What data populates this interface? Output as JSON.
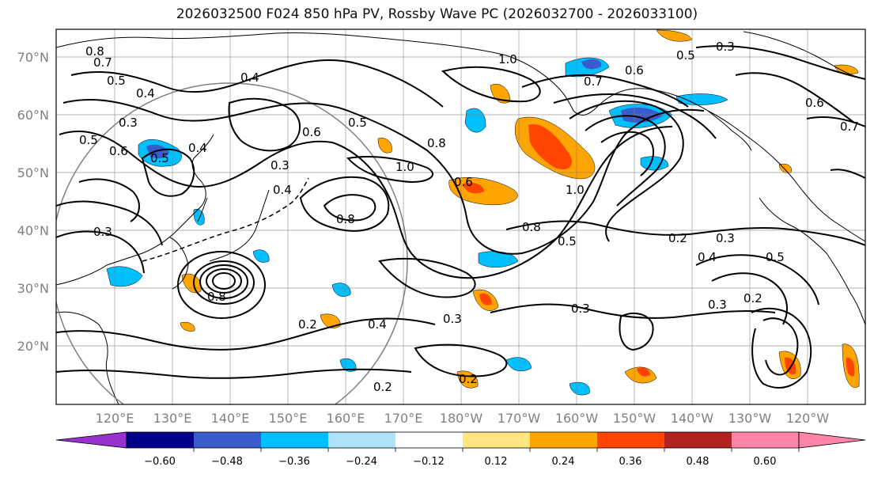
{
  "title": "2026032500 F024 850 hPa PV, Rossby Wave PC (2026032700 - 2026033100)",
  "lat_labels": [
    "70°N",
    "60°N",
    "50°N",
    "40°N",
    "30°N",
    "20°N"
  ],
  "lon_labels": [
    "120°E",
    "130°E",
    "140°E",
    "150°E",
    "160°E",
    "170°E",
    "180°W",
    "170°W",
    "160°W",
    "150°W",
    "140°W",
    "130°W",
    "120°W"
  ],
  "contour_labels": [
    "0.8",
    "0.7",
    "0.5",
    "0.4",
    "0.3",
    "0.5",
    "0.6",
    "0.5",
    "0.4",
    "0.6",
    "0.3",
    "0.4",
    "1.0",
    "0.6",
    "0.8",
    "0.4",
    "0.5",
    "0.8",
    "1.0",
    "0.5",
    "0.8",
    "0.2",
    "0.3",
    "0.4",
    "0.5",
    "0.2",
    "0.3",
    "0.2",
    "0.4",
    "0.3",
    "0.2",
    "0.2",
    "0.3",
    "0.8",
    "0.3",
    "0.7",
    "0.6",
    "0.5",
    "0.3",
    "1.0",
    "0.6",
    "0.7"
  ],
  "colorbar": {
    "ticks": [
      "−0.60",
      "−0.48",
      "−0.36",
      "−0.24",
      "−0.12",
      "0.12",
      "0.24",
      "0.36",
      "0.48",
      "0.60"
    ],
    "colors": [
      "#9932CC",
      "#00008B",
      "#3A5BCB",
      "#00BFFF",
      "#ADE1FA",
      "#FFFFFF",
      "#FFE680",
      "#FFA500",
      "#FF4500",
      "#B22222",
      "#FF85A8"
    ]
  },
  "colors": {
    "contour": "#000000",
    "grid": "#808080",
    "coast": "#000000",
    "circle": "#808080"
  }
}
